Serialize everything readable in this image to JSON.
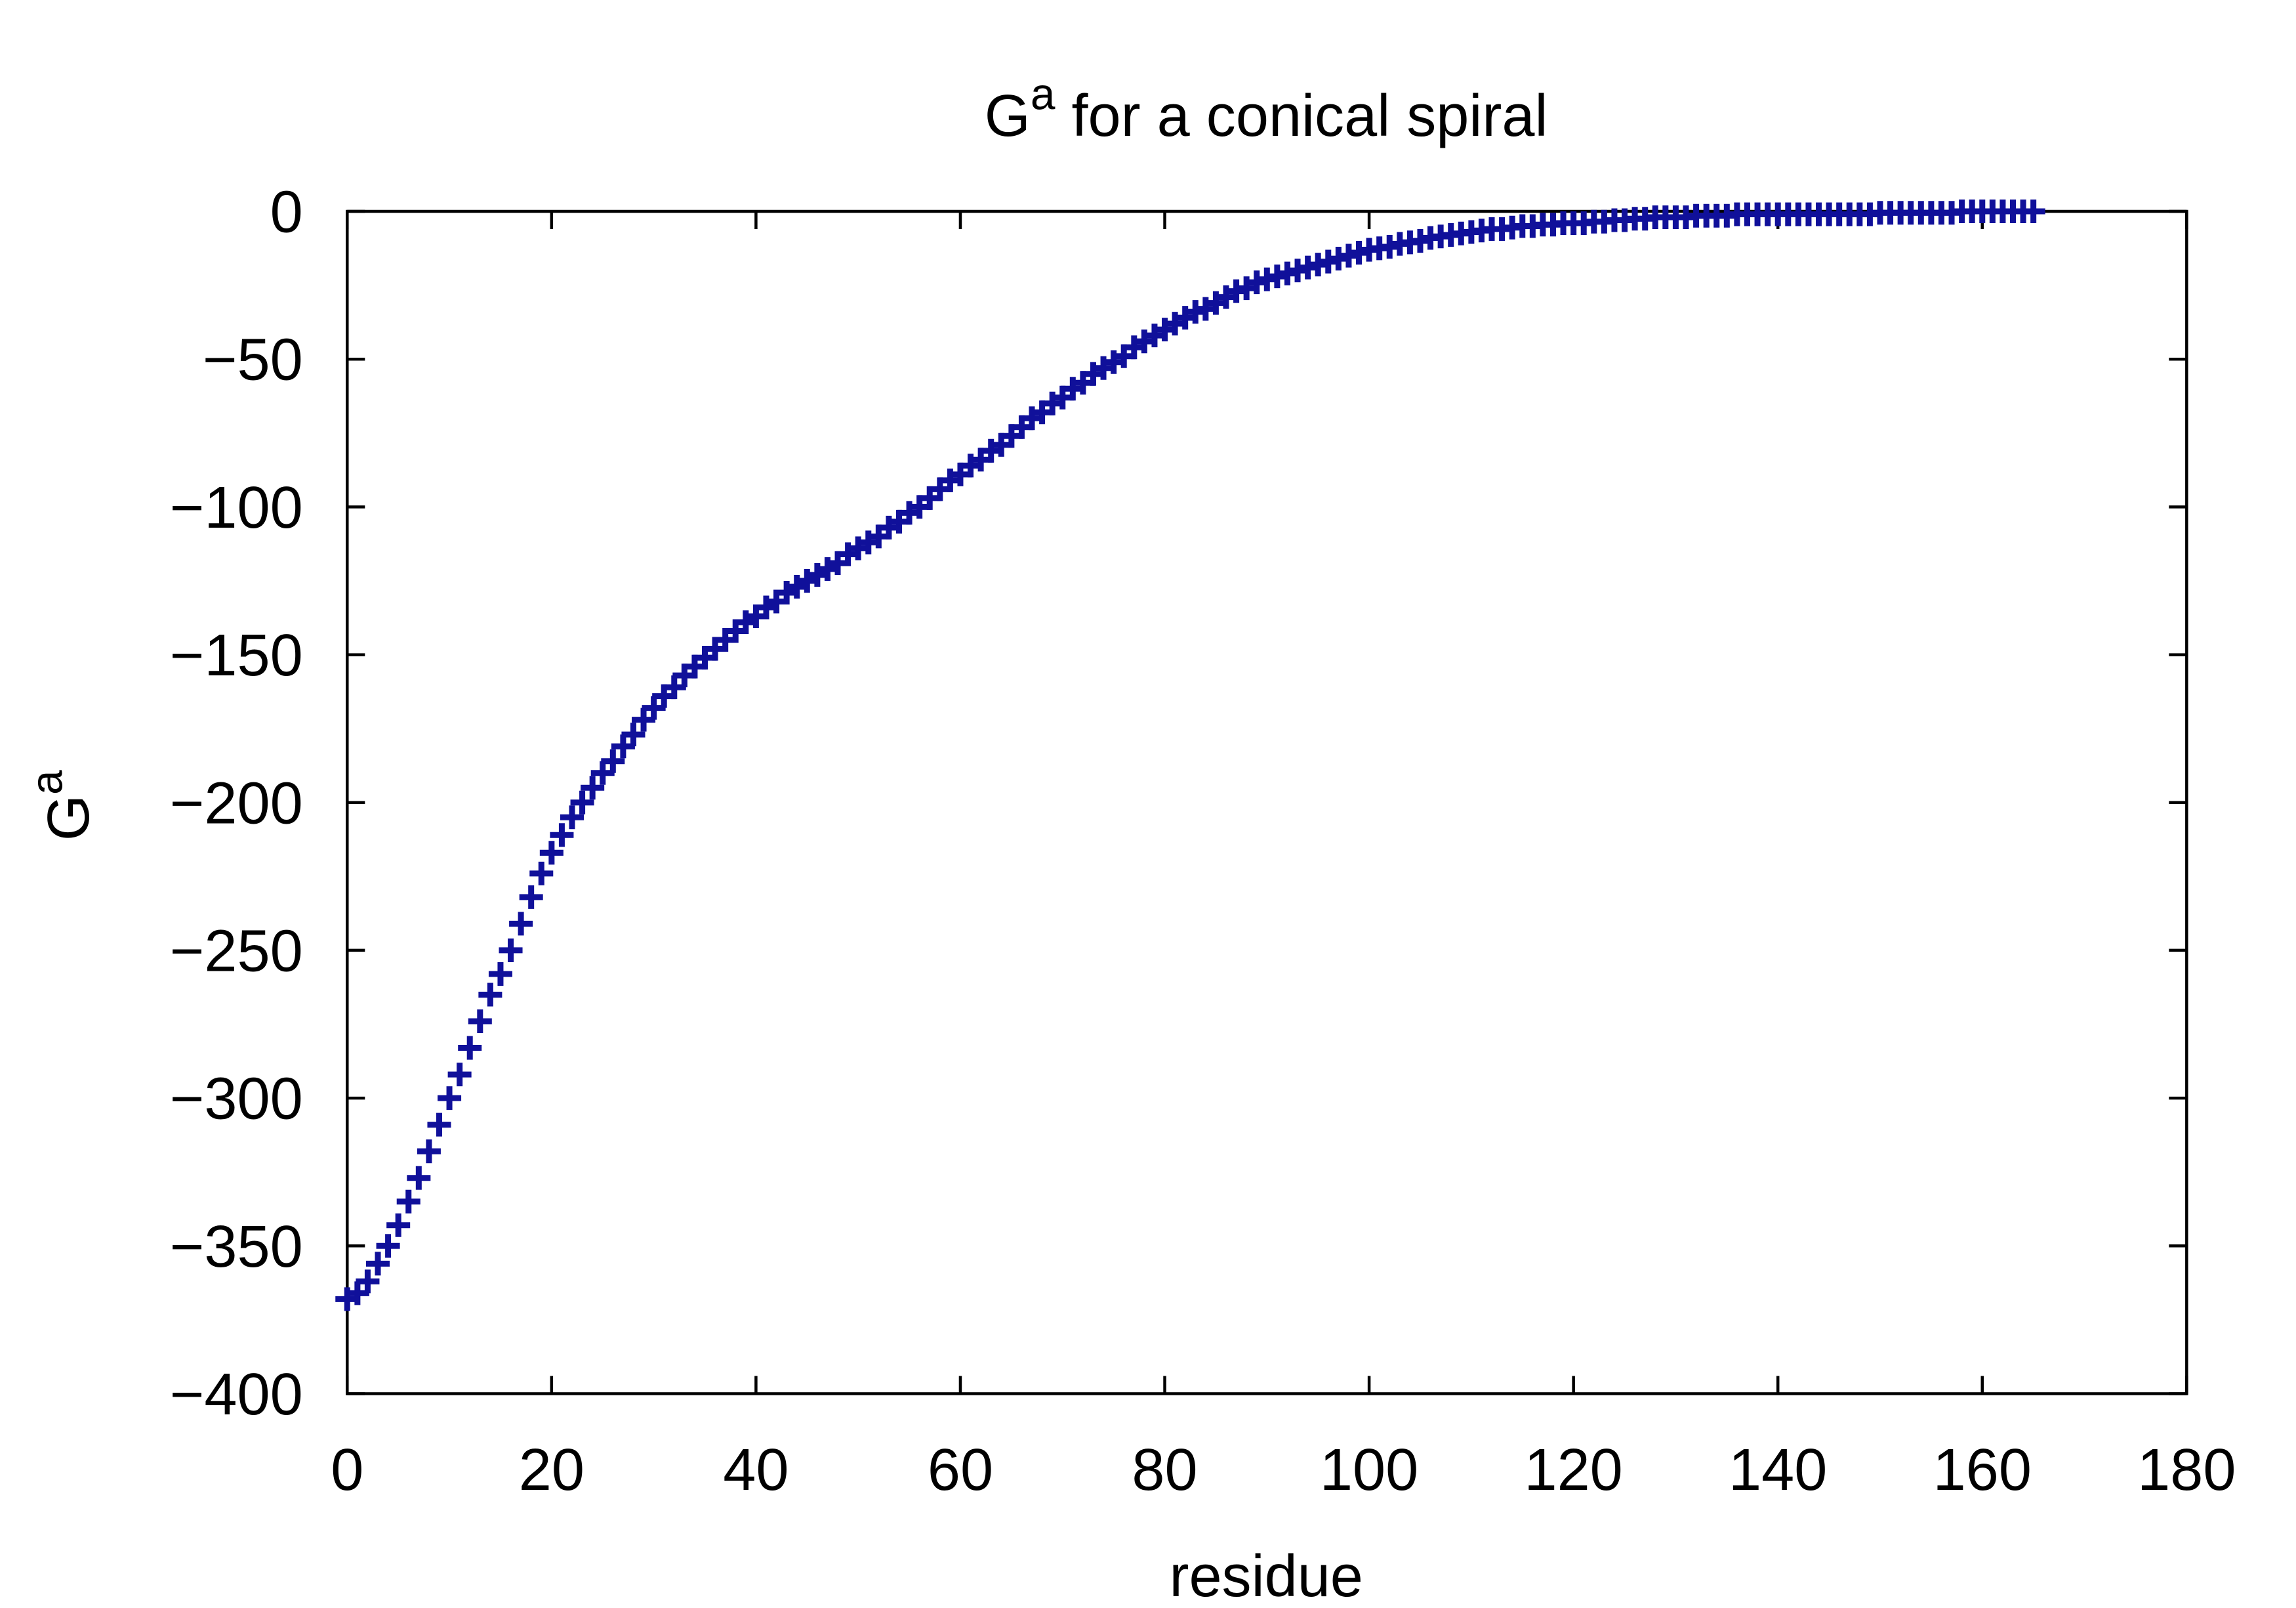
{
  "chart_data": {
    "type": "scatter",
    "title": [
      "G",
      "a",
      " for a conical spiral"
    ],
    "x_label": "residue",
    "y_label": [
      "G",
      "a"
    ],
    "color": "#10109a",
    "marker": "+",
    "xlim": [
      0,
      180
    ],
    "ylim": [
      -400,
      0
    ],
    "xticks": [
      0,
      20,
      40,
      60,
      80,
      100,
      120,
      140,
      160,
      180
    ],
    "yticks": [
      {
        "value": 0,
        "label": "0"
      },
      {
        "value": -50,
        "label": "−50"
      },
      {
        "value": -100,
        "label": "−100"
      },
      {
        "value": -150,
        "label": "−150"
      },
      {
        "value": -200,
        "label": "−200"
      },
      {
        "value": -250,
        "label": "−250"
      },
      {
        "value": -300,
        "label": "−300"
      },
      {
        "value": -350,
        "label": "−350"
      },
      {
        "value": -400,
        "label": "−400"
      }
    ],
    "x": [
      0,
      1,
      2,
      3,
      4,
      5,
      6,
      7,
      8,
      9,
      10,
      11,
      12,
      13,
      14,
      15,
      16,
      17,
      18,
      19,
      20,
      21,
      22,
      23,
      24,
      25,
      26,
      27,
      28,
      29,
      30,
      31,
      32,
      33,
      34,
      35,
      36,
      37,
      38,
      39,
      40,
      41,
      42,
      43,
      44,
      45,
      46,
      47,
      48,
      49,
      50,
      51,
      52,
      53,
      54,
      55,
      56,
      57,
      58,
      59,
      60,
      61,
      62,
      63,
      64,
      65,
      66,
      67,
      68,
      69,
      70,
      71,
      72,
      73,
      74,
      75,
      76,
      77,
      78,
      79,
      80,
      81,
      82,
      83,
      84,
      85,
      86,
      87,
      88,
      89,
      90,
      91,
      92,
      93,
      94,
      95,
      96,
      97,
      98,
      99,
      100,
      101,
      102,
      103,
      104,
      105,
      106,
      107,
      108,
      109,
      110,
      111,
      112,
      113,
      114,
      115,
      116,
      117,
      118,
      119,
      120,
      121,
      122,
      123,
      124,
      125,
      126,
      127,
      128,
      129,
      130,
      131,
      132,
      133,
      134,
      135,
      136,
      137,
      138,
      139,
      140,
      141,
      142,
      143,
      144,
      145,
      146,
      147,
      148,
      149,
      150,
      151,
      152,
      153,
      154,
      155,
      156,
      157,
      158,
      159,
      160,
      161,
      162,
      163,
      164,
      165
    ],
    "values": [
      -368,
      -366,
      -362,
      -356,
      -350,
      -343,
      -335,
      -327,
      -318,
      -309,
      -300,
      -292,
      -283,
      -274,
      -265,
      -258,
      -250,
      -241,
      -232,
      -224,
      -217,
      -211,
      -205,
      -200,
      -195,
      -190,
      -186,
      -181,
      -177,
      -172,
      -168,
      -164,
      -161,
      -157,
      -154,
      -151,
      -148,
      -145,
      -142,
      -139,
      -137,
      -134,
      -132,
      -129,
      -127,
      -125,
      -123,
      -121,
      -119,
      -116,
      -114,
      -112,
      -110,
      -107,
      -105,
      -102,
      -100,
      -97,
      -94,
      -91,
      -89,
      -86,
      -84,
      -81,
      -79,
      -76,
      -73,
      -70,
      -68,
      -65,
      -63,
      -60,
      -58,
      -55,
      -53,
      -51,
      -49,
      -46,
      -44,
      -42,
      -40,
      -38,
      -36,
      -34,
      -33,
      -31,
      -29,
      -27,
      -26,
      -24,
      -23,
      -22,
      -21,
      -20,
      -19,
      -18,
      -17,
      -16,
      -15,
      -14,
      -13,
      -12.5,
      -12,
      -11,
      -10.5,
      -10,
      -9,
      -8.5,
      -8,
      -7.5,
      -7,
      -6.5,
      -6,
      -6,
      -5.5,
      -5,
      -5,
      -4.5,
      -4.5,
      -4,
      -4,
      -4,
      -3.5,
      -3.5,
      -3,
      -3,
      -2.5,
      -2.5,
      -2,
      -2,
      -2,
      -2,
      -1.5,
      -1.5,
      -1.5,
      -1.5,
      -1,
      -1,
      -1,
      -1,
      -1,
      -1,
      -1,
      -1,
      -1,
      -1,
      -1,
      -1,
      -1,
      -1,
      -0.5,
      -0.5,
      -0.5,
      -0.5,
      -0.5,
      -0.5,
      -0.5,
      -0.5,
      0,
      0,
      0,
      0,
      0,
      0,
      0,
      0
    ]
  }
}
